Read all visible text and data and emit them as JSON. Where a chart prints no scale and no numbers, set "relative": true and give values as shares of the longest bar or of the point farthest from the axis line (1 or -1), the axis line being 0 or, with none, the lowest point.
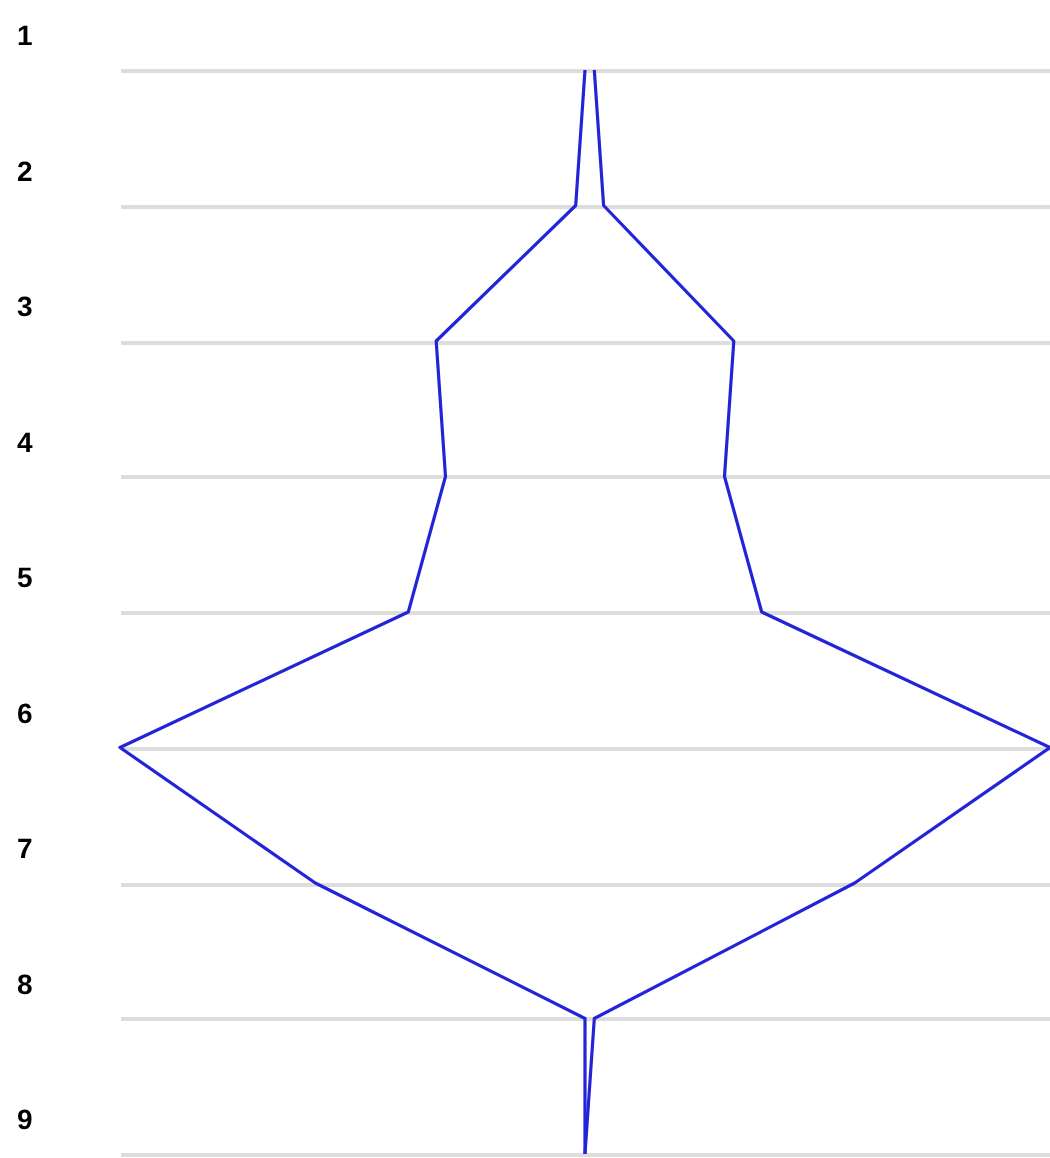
{
  "chart_data": {
    "type": "line",
    "orientation": "horizontal",
    "relative": true,
    "grid": "y",
    "legend": false,
    "line_style": "solid",
    "marker": "none",
    "categories": [
      "1",
      "2",
      "3",
      "4",
      "5",
      "6",
      "7",
      "8",
      "9"
    ],
    "series": [
      {
        "color": "#2323d8",
        "values": [
          0.5,
          0.49,
          0.34,
          0.35,
          0.31,
          0,
          0.21,
          0.5,
          0.5
        ]
      },
      {
        "color": "#2323d8",
        "values": [
          0.51,
          0.52,
          0.66,
          0.65,
          0.69,
          1,
          0.79,
          0.51,
          0.5
        ]
      }
    ]
  }
}
